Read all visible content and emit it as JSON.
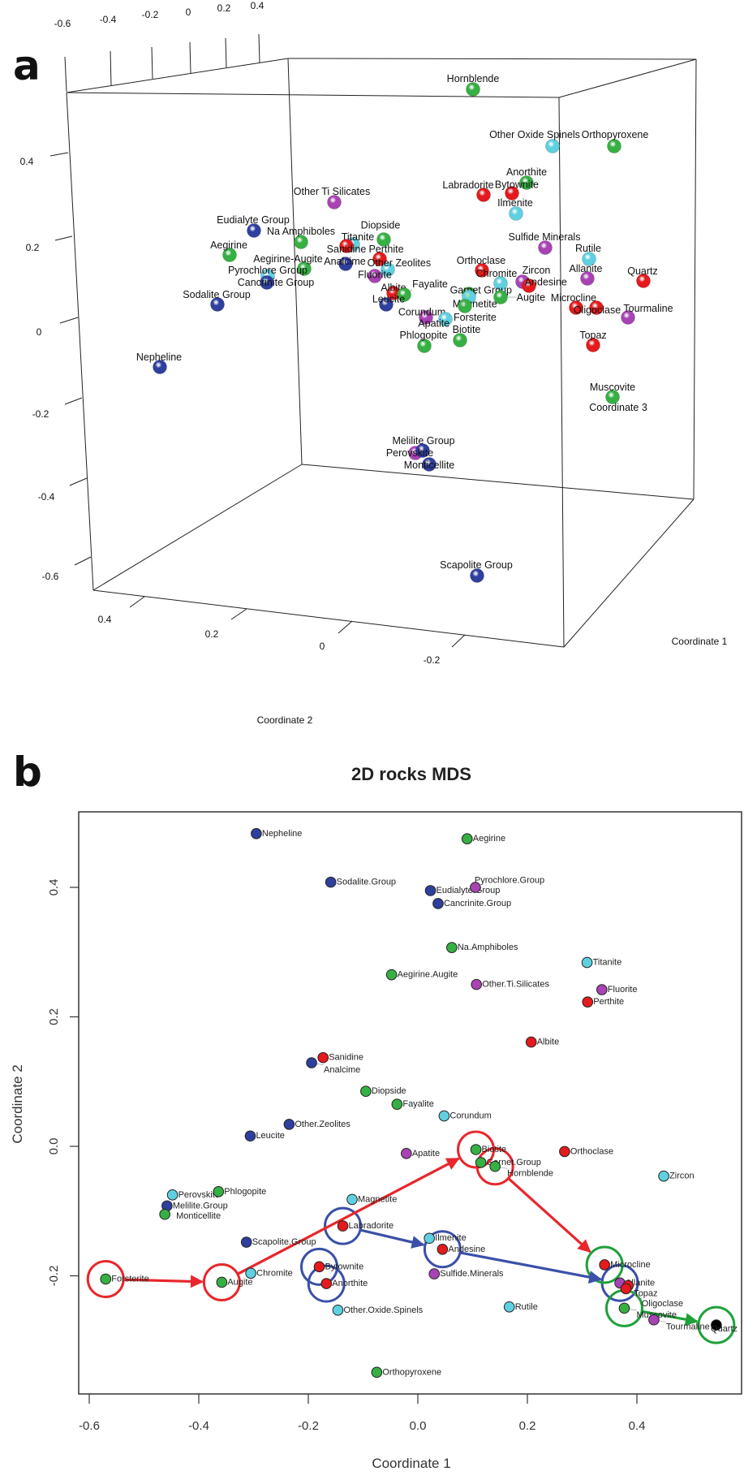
{
  "panel_labels": {
    "a": "a",
    "b": "b"
  },
  "colors": {
    "blue": "#2f3f9e",
    "green": "#36b043",
    "red": "#e41a1c",
    "cyan": "#5fd0e0",
    "magenta": "#a843b3",
    "black": "#000000"
  },
  "chart_data": [
    {
      "type": "scatter3d",
      "panel": "a",
      "axis_labels": {
        "x": "Coordinate 1",
        "y": "Coordinate 2",
        "z": "Coordinate 3"
      },
      "ticks": {
        "top": [
          "-0.6",
          "-0.4",
          "-0.2",
          "0",
          "0.2",
          "0.4"
        ],
        "left": [
          "0.4",
          "0.2",
          "0",
          "-0.2",
          "-0.4",
          "-0.6"
        ],
        "bottom": [
          "0.4",
          "0.2",
          "0",
          "-0.2"
        ]
      },
      "points": [
        {
          "name": "Hornblende",
          "color": "green"
        },
        {
          "name": "Other Oxide Spinels",
          "color": "cyan"
        },
        {
          "name": "Orthopyroxene",
          "color": "green"
        },
        {
          "name": "Other Ti Silicates",
          "color": "magenta"
        },
        {
          "name": "Anorthite",
          "color": "green"
        },
        {
          "name": "Bytownite",
          "color": "red"
        },
        {
          "name": "Labradorite",
          "color": "red"
        },
        {
          "name": "Ilmenite",
          "color": "cyan"
        },
        {
          "name": "Eudialyte Group",
          "color": "blue"
        },
        {
          "name": "Na Amphiboles",
          "color": "green"
        },
        {
          "name": "Aegirine",
          "color": "green"
        },
        {
          "name": "Titanite",
          "color": "cyan"
        },
        {
          "name": "Sanidine",
          "color": "red"
        },
        {
          "name": "Diopside",
          "color": "green"
        },
        {
          "name": "Analcime",
          "color": "blue"
        },
        {
          "name": "Perthite",
          "color": "red"
        },
        {
          "name": "Other Zeolites",
          "color": "cyan"
        },
        {
          "name": "Fluorite",
          "color": "magenta"
        },
        {
          "name": "Aegirine-Augite",
          "color": "green"
        },
        {
          "name": "Pyrochlore Group",
          "color": "cyan"
        },
        {
          "name": "Cancrinite Group",
          "color": "blue"
        },
        {
          "name": "Sodalite Group",
          "color": "blue"
        },
        {
          "name": "Sulfide Minerals",
          "color": "magenta"
        },
        {
          "name": "Rutile",
          "color": "cyan"
        },
        {
          "name": "Orthoclase",
          "color": "red"
        },
        {
          "name": "Chromite",
          "color": "cyan"
        },
        {
          "name": "Zircon",
          "color": "magenta"
        },
        {
          "name": "Andesine",
          "color": "red"
        },
        {
          "name": "Allanite",
          "color": "magenta"
        },
        {
          "name": "Quartz",
          "color": "red"
        },
        {
          "name": "Albite",
          "color": "red"
        },
        {
          "name": "Fayalite",
          "color": "green"
        },
        {
          "name": "Leucite",
          "color": "blue"
        },
        {
          "name": "Garnet Group",
          "color": "green"
        },
        {
          "name": "Magnetite",
          "color": "cyan"
        },
        {
          "name": "Augite",
          "color": "green"
        },
        {
          "name": "Forsterite",
          "color": "green"
        },
        {
          "name": "Corundum",
          "color": "magenta"
        },
        {
          "name": "Apatite",
          "color": "cyan"
        },
        {
          "name": "Microcline",
          "color": "red"
        },
        {
          "name": "Oligoclase",
          "color": "red"
        },
        {
          "name": "Tourmaline",
          "color": "magenta"
        },
        {
          "name": "Biotite",
          "color": "green"
        },
        {
          "name": "Phlogopite",
          "color": "green"
        },
        {
          "name": "Topaz",
          "color": "red"
        },
        {
          "name": "Muscovite",
          "color": "green"
        },
        {
          "name": "Nepheline",
          "color": "blue"
        },
        {
          "name": "Melilite Group",
          "color": "magenta"
        },
        {
          "name": "Perovskite",
          "color": "blue"
        },
        {
          "name": "Monticellite",
          "color": "blue"
        },
        {
          "name": "Scapolite Group",
          "color": "blue"
        }
      ]
    },
    {
      "type": "scatter",
      "panel": "b",
      "title": "2D rocks MDS",
      "xlabel": "Coordinate 1",
      "ylabel": "Coordinate 2",
      "xlim": [
        -0.62,
        0.59
      ],
      "ylim": [
        -0.38,
        0.52
      ],
      "xticks": [
        -0.6,
        -0.4,
        -0.2,
        0.0,
        0.2,
        0.4
      ],
      "xtick_labels": [
        "-0.6",
        "-0.4",
        "-0.2",
        "0.0",
        "0.2",
        "0.4"
      ],
      "yticks": [
        -0.2,
        0.0,
        0.2,
        0.4
      ],
      "ytick_labels": [
        "-0.2",
        "0.0",
        "0.2",
        "0.4"
      ],
      "grid": false,
      "points": [
        {
          "name": "Nepheline",
          "x": -0.295,
          "y": 0.483,
          "color": "blue"
        },
        {
          "name": "Aegirine",
          "x": 0.09,
          "y": 0.475,
          "color": "green"
        },
        {
          "name": "Sodalite.Group",
          "x": -0.159,
          "y": 0.408,
          "color": "blue"
        },
        {
          "name": "Eudialyte.Group",
          "x": 0.023,
          "y": 0.395,
          "color": "blue"
        },
        {
          "name": "Pyrochlore.Group",
          "x": 0.105,
          "y": 0.4,
          "color": "magenta"
        },
        {
          "name": "Cancrinite.Group",
          "x": 0.037,
          "y": 0.375,
          "color": "blue"
        },
        {
          "name": "Na.Amphiboles",
          "x": 0.062,
          "y": 0.307,
          "color": "green"
        },
        {
          "name": "Titanite",
          "x": 0.309,
          "y": 0.284,
          "color": "cyan"
        },
        {
          "name": "Aegirine.Augite",
          "x": -0.048,
          "y": 0.265,
          "color": "green"
        },
        {
          "name": "Other.Ti.Silicates",
          "x": 0.107,
          "y": 0.25,
          "color": "magenta"
        },
        {
          "name": "Fluorite",
          "x": 0.336,
          "y": 0.242,
          "color": "magenta"
        },
        {
          "name": "Perthite",
          "x": 0.31,
          "y": 0.223,
          "color": "red"
        },
        {
          "name": "Albite",
          "x": 0.207,
          "y": 0.161,
          "color": "red"
        },
        {
          "name": "Sanidine",
          "x": -0.173,
          "y": 0.137,
          "color": "red"
        },
        {
          "name": "Analcime",
          "x": -0.194,
          "y": 0.129,
          "color": "blue"
        },
        {
          "name": "Diopside",
          "x": -0.095,
          "y": 0.085,
          "color": "green"
        },
        {
          "name": "Fayalite",
          "x": -0.038,
          "y": 0.065,
          "color": "green"
        },
        {
          "name": "Corundum",
          "x": 0.048,
          "y": 0.047,
          "color": "cyan"
        },
        {
          "name": "Other.Zeolites",
          "x": -0.235,
          "y": 0.034,
          "color": "blue"
        },
        {
          "name": "Leucite",
          "x": -0.306,
          "y": 0.016,
          "color": "blue"
        },
        {
          "name": "Apatite",
          "x": -0.021,
          "y": -0.011,
          "color": "magenta"
        },
        {
          "name": "Biotite",
          "x": 0.106,
          "y": -0.005,
          "color": "green"
        },
        {
          "name": "Orthoclase",
          "x": 0.268,
          "y": -0.008,
          "color": "red"
        },
        {
          "name": "Garnet.Group",
          "x": 0.115,
          "y": -0.025,
          "color": "green"
        },
        {
          "name": "Hornblende",
          "x": 0.141,
          "y": -0.031,
          "color": "green"
        },
        {
          "name": "Zircon",
          "x": 0.449,
          "y": -0.046,
          "color": "cyan"
        },
        {
          "name": "Perovskite",
          "x": -0.448,
          "y": -0.075,
          "color": "cyan"
        },
        {
          "name": "Phlogopite",
          "x": -0.364,
          "y": -0.07,
          "color": "green"
        },
        {
          "name": "Melilite.Group",
          "x": -0.458,
          "y": -0.092,
          "color": "blue"
        },
        {
          "name": "Monticellite",
          "x": -0.462,
          "y": -0.105,
          "color": "green"
        },
        {
          "name": "Magnetite",
          "x": -0.12,
          "y": -0.082,
          "color": "cyan"
        },
        {
          "name": "Labradorite",
          "x": -0.137,
          "y": -0.123,
          "color": "red"
        },
        {
          "name": "Scapolite.Group",
          "x": -0.313,
          "y": -0.148,
          "color": "blue"
        },
        {
          "name": "Ilmenite",
          "x": 0.021,
          "y": -0.142,
          "color": "cyan"
        },
        {
          "name": "Andesine",
          "x": 0.045,
          "y": -0.159,
          "color": "red"
        },
        {
          "name": "Forsterite",
          "x": -0.57,
          "y": -0.205,
          "color": "green"
        },
        {
          "name": "Augite",
          "x": -0.358,
          "y": -0.21,
          "color": "green"
        },
        {
          "name": "Chromite",
          "x": -0.305,
          "y": -0.196,
          "color": "cyan"
        },
        {
          "name": "Bytownite",
          "x": -0.18,
          "y": -0.186,
          "color": "red"
        },
        {
          "name": "Anorthite",
          "x": -0.167,
          "y": -0.212,
          "color": "red"
        },
        {
          "name": "Sulfide.Minerals",
          "x": 0.03,
          "y": -0.197,
          "color": "magenta"
        },
        {
          "name": "Other.Oxide.Spinels",
          "x": -0.146,
          "y": -0.253,
          "color": "cyan"
        },
        {
          "name": "Rutile",
          "x": 0.167,
          "y": -0.248,
          "color": "cyan"
        },
        {
          "name": "Microcline",
          "x": 0.341,
          "y": -0.183,
          "color": "red"
        },
        {
          "name": "Allanite",
          "x": 0.369,
          "y": -0.211,
          "color": "magenta"
        },
        {
          "name": "Topaz",
          "x": 0.384,
          "y": -0.215,
          "color": "red"
        },
        {
          "name": "Oligoclase",
          "x": 0.38,
          "y": -0.22,
          "color": "red"
        },
        {
          "name": "Muscovite",
          "x": 0.377,
          "y": -0.25,
          "color": "green"
        },
        {
          "name": "Tourmaline",
          "x": 0.431,
          "y": -0.268,
          "color": "magenta"
        },
        {
          "name": "Quartz",
          "x": 0.545,
          "y": -0.276,
          "color": "black"
        },
        {
          "name": "Orthopyroxene",
          "x": -0.075,
          "y": -0.349,
          "color": "green"
        }
      ],
      "annotations": {
        "circles": [
          {
            "point": "Forsterite",
            "color": "red"
          },
          {
            "point": "Augite",
            "color": "red"
          },
          {
            "point": "Biotite",
            "color": "red"
          },
          {
            "point": "Hornblende",
            "color": "red"
          },
          {
            "point": "Labradorite",
            "color": "blue"
          },
          {
            "point": "Bytownite",
            "color": "blue"
          },
          {
            "point": "Anorthite",
            "color": "blue"
          },
          {
            "point": "Andesine",
            "color": "blue"
          },
          {
            "point": "Allanite",
            "color": "blue"
          },
          {
            "point": "Microcline",
            "color": "green"
          },
          {
            "point": "Muscovite",
            "color": "green"
          },
          {
            "point": "Quartz",
            "color": "green"
          }
        ],
        "arrows": [
          {
            "from": "Forsterite",
            "to": "Augite",
            "color": "red"
          },
          {
            "from": "Augite",
            "to": "Biotite",
            "color": "red"
          },
          {
            "from": "Hornblende",
            "to": "Microcline",
            "color": "red"
          },
          {
            "from": "Labradorite",
            "to": "Andesine",
            "color": "blue"
          },
          {
            "from": "Andesine",
            "to": "Allanite",
            "color": "blue"
          },
          {
            "from": "Muscovite",
            "to": "Quartz",
            "color": "green"
          }
        ]
      },
      "annotation_colors": {
        "red": "#e8262b",
        "blue": "#3a50a8",
        "green": "#1fa13a"
      }
    }
  ]
}
